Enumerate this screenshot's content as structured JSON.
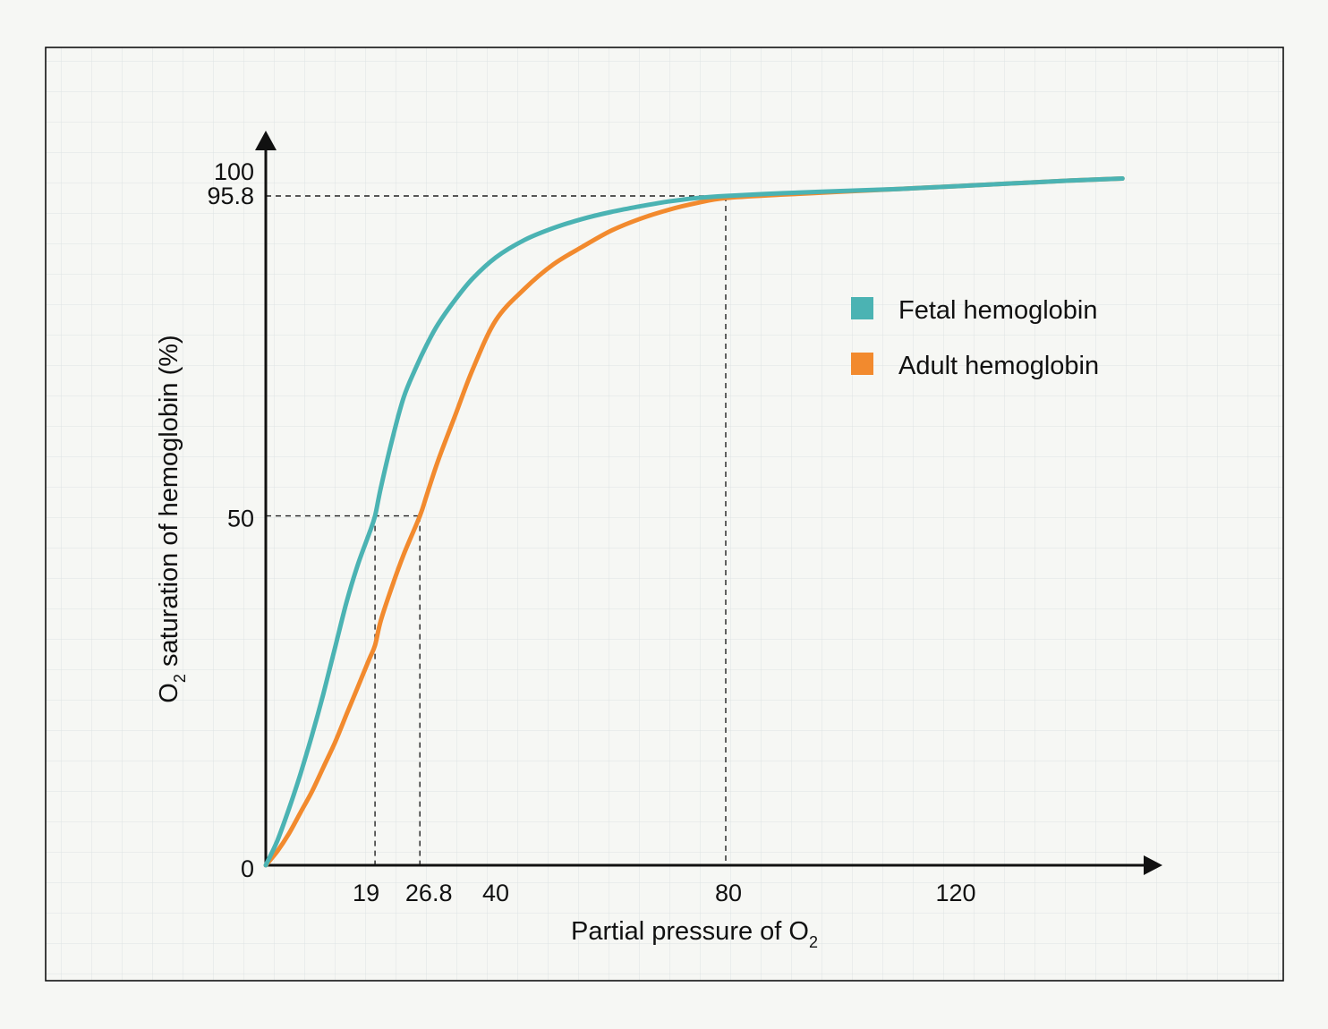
{
  "chart_data": {
    "type": "line",
    "xlabel": {
      "main": "Partial pressure of O",
      "sub": "2"
    },
    "ylabel": {
      "pre": "O",
      "sub": "2",
      "post": " saturation of hemoglobin (%)"
    },
    "xlim": [
      0,
      150
    ],
    "ylim": [
      0,
      100
    ],
    "x_ticks": [
      {
        "value": 19,
        "label": "19"
      },
      {
        "value": 26.8,
        "label": "26.8"
      },
      {
        "value": 40,
        "label": "40"
      },
      {
        "value": 80,
        "label": "80"
      },
      {
        "value": 120,
        "label": "120"
      }
    ],
    "y_ticks": [
      {
        "value": 0,
        "label": "0"
      },
      {
        "value": 50,
        "label": "50"
      },
      {
        "value": 95.8,
        "label": "95.8"
      },
      {
        "value": 100,
        "label": "100"
      }
    ],
    "reference_lines": [
      {
        "x": 19,
        "y": 50
      },
      {
        "x": 26.8,
        "y": 50
      },
      {
        "x": 80,
        "y": 95.8
      }
    ],
    "grid": true,
    "legend_position": "top-right",
    "series": [
      {
        "name": "Fetal hemoglobin",
        "color": "#4bb3b3",
        "x": [
          0,
          2,
          4,
          6,
          8,
          10,
          12,
          14,
          16,
          18,
          19,
          20,
          22,
          24,
          26,
          28,
          30,
          33,
          36,
          40,
          45,
          50,
          55,
          60,
          65,
          70,
          75,
          80,
          90,
          100,
          110,
          120,
          130,
          140,
          149
        ],
        "y": [
          0,
          3.5,
          8,
          13,
          18.5,
          24.5,
          31,
          37.5,
          43,
          47.5,
          50,
          54,
          61,
          67,
          71,
          74.5,
          77.5,
          81,
          84,
          87,
          89.5,
          91.2,
          92.5,
          93.5,
          94.3,
          95,
          95.5,
          95.8,
          96.2,
          96.5,
          96.8,
          97.2,
          97.6,
          98,
          98.3
        ]
      },
      {
        "name": "Adult hemoglobin",
        "color": "#f28a2e",
        "x": [
          0,
          2,
          4,
          6,
          8,
          10,
          12,
          14,
          16,
          18,
          19,
          20,
          22,
          24,
          26.8,
          28,
          30,
          33,
          36,
          40,
          45,
          50,
          55,
          60,
          65,
          70,
          75,
          80,
          90,
          100,
          110,
          120,
          130,
          140,
          149
        ],
        "y": [
          0,
          2,
          4.5,
          7.5,
          10.5,
          14,
          17.5,
          21.5,
          25.5,
          29.5,
          31.5,
          35,
          40,
          44.5,
          50,
          53,
          58,
          64.5,
          71,
          78,
          82.5,
          86,
          88.5,
          90.8,
          92.5,
          93.8,
          94.8,
          95.5,
          96,
          96.4,
          96.8,
          97.2,
          97.6,
          98,
          98.3
        ]
      }
    ]
  }
}
